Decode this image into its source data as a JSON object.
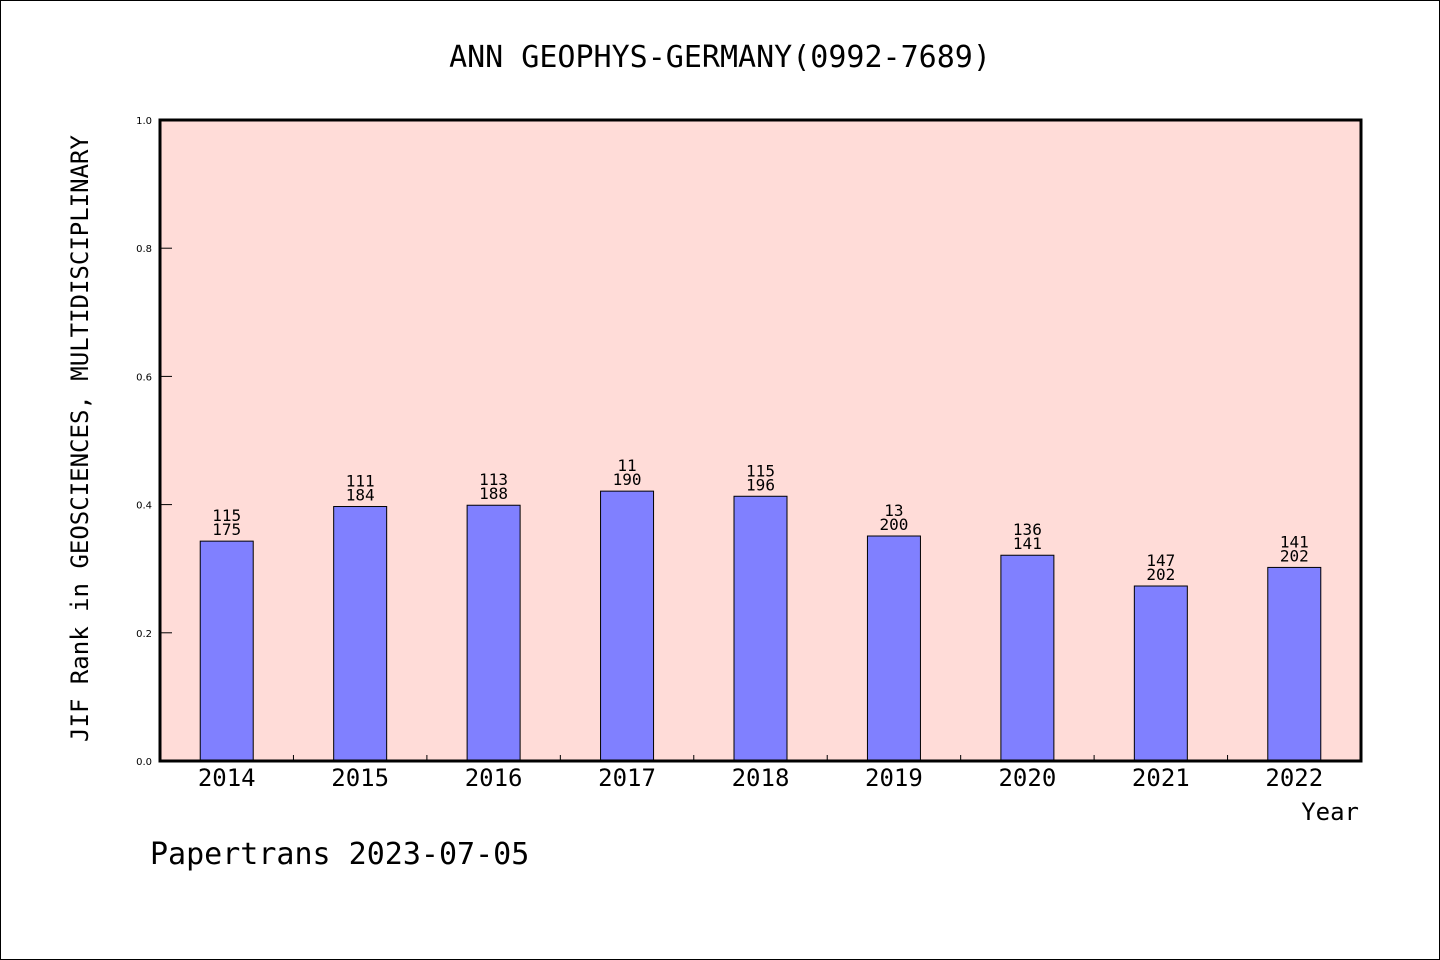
{
  "chart_data": {
    "type": "bar",
    "title": "ANN GEOPHYS-GERMANY(0992-7689)",
    "xlabel": "Year",
    "ylabel": "JIF Rank in GEOSCIENCES, MULTIDISCIPLINARY",
    "ylim": [
      0,
      1.0
    ],
    "yticks": [
      "0.0",
      "0.2",
      "0.4",
      "0.6",
      "0.8",
      "1.0"
    ],
    "categories": [
      "2014",
      "2015",
      "2016",
      "2017",
      "2018",
      "2019",
      "2020",
      "2021",
      "2022"
    ],
    "values": [
      0.343,
      0.397,
      0.399,
      0.421,
      0.413,
      0.351,
      0.321,
      0.273,
      0.302
    ],
    "rank_labels": [
      "115",
      "111",
      "113",
      "11",
      "115",
      "13",
      "136",
      "147",
      "141"
    ],
    "total_labels": [
      "175",
      "184",
      "188",
      "190",
      "196",
      "200",
      "141",
      "202",
      "202"
    ],
    "colors": {
      "background": "#FFDCD8",
      "bar": "#8080FF",
      "axis": "#000000"
    }
  },
  "footer": "Papertrans 2023-07-05"
}
